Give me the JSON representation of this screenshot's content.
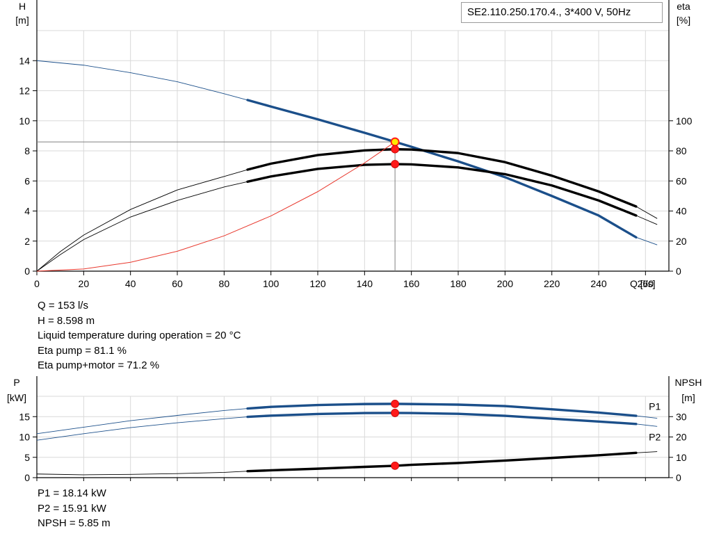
{
  "title": "SE2.110.250.170.4., 3*400 V, 50Hz",
  "colors": {
    "blue": "#1b4f8a",
    "black": "#000000",
    "red_curve": "#e8372c",
    "marker": "#ff1a1a",
    "grid": "#d9d9d9",
    "duty_marker_fill": "#ffe800"
  },
  "chart_data": [
    {
      "type": "line",
      "name": "performance",
      "x_axis": {
        "label": "Q [l/s]",
        "min": 0,
        "max": 270,
        "ticks": [
          0,
          20,
          40,
          60,
          80,
          100,
          120,
          140,
          160,
          180,
          200,
          220,
          240,
          260
        ],
        "tick_labels": [
          "0",
          "20",
          "40",
          "60",
          "80",
          "100",
          "120",
          "140",
          "160",
          "180",
          "200",
          "220",
          "240",
          "260"
        ]
      },
      "y_left": {
        "label_line1": "H",
        "label_line2": "[m]",
        "min": 0,
        "max": 16,
        "ticks": [
          0,
          2,
          4,
          6,
          8,
          10,
          12,
          14
        ],
        "tick_labels": [
          "0",
          "2",
          "4",
          "6",
          "8",
          "10",
          "12",
          "14"
        ]
      },
      "y_right": {
        "label_line1": "eta",
        "label_line2": "[%]",
        "min": 0,
        "max": 160,
        "ticks": [
          0,
          20,
          40,
          60,
          80,
          100
        ],
        "tick_labels": [
          "0",
          "20",
          "40",
          "60",
          "80",
          "100"
        ]
      },
      "grid": true,
      "series": [
        {
          "id": "H",
          "axis": "left",
          "color": "#1b4f8a",
          "x": [
            0,
            20,
            40,
            60,
            80,
            90,
            100,
            120,
            140,
            153,
            160,
            180,
            200,
            220,
            240,
            256,
            265
          ],
          "y": [
            14.0,
            13.7,
            13.2,
            12.6,
            11.8,
            11.38,
            10.95,
            10.1,
            9.2,
            8.6,
            8.27,
            7.3,
            6.25,
            5.0,
            3.7,
            2.25,
            1.75
          ],
          "bold_range": [
            90,
            256
          ]
        },
        {
          "id": "eta-pump",
          "axis": "right",
          "color": "#000000",
          "x": [
            0,
            10,
            20,
            40,
            60,
            80,
            90,
            100,
            120,
            140,
            153,
            160,
            180,
            200,
            220,
            240,
            256,
            265
          ],
          "y": [
            0,
            13,
            24,
            41,
            54,
            63,
            67.5,
            71.5,
            77.2,
            80.3,
            81.1,
            80.9,
            78.5,
            72.5,
            63.5,
            53,
            43,
            35
          ],
          "bold_range": [
            90,
            256
          ]
        },
        {
          "id": "eta-total",
          "axis": "right",
          "color": "#000000",
          "x": [
            0,
            10,
            20,
            40,
            60,
            80,
            90,
            100,
            120,
            140,
            153,
            160,
            180,
            200,
            220,
            240,
            256,
            265
          ],
          "y": [
            0,
            11,
            21,
            36,
            47,
            56,
            59.5,
            63,
            68,
            70.7,
            71.2,
            71,
            69,
            64.5,
            57,
            47,
            37,
            31
          ],
          "bold_range": [
            90,
            256
          ]
        },
        {
          "id": "system-curve",
          "axis": "left",
          "color": "#e8372c",
          "x": [
            0,
            20,
            40,
            60,
            80,
            100,
            120,
            140,
            153
          ],
          "y": [
            0,
            0.147,
            0.588,
            1.322,
            2.35,
            3.673,
            5.289,
            7.199,
            8.598
          ],
          "thin": true
        }
      ],
      "duty_line": {
        "q": 153,
        "h": 8.598
      },
      "duty_markers": [
        {
          "axis": "left",
          "q": 153,
          "value": 8.598,
          "style": "yellow"
        },
        {
          "axis": "right",
          "q": 153,
          "value": 81.1,
          "style": "red"
        },
        {
          "axis": "right",
          "q": 153,
          "value": 71.2,
          "style": "red"
        }
      ]
    },
    {
      "type": "line",
      "name": "power-npsh",
      "x_axis": {
        "min": 0,
        "max": 270
      },
      "y_left": {
        "label_line1": "P",
        "label_line2": "[kW]",
        "min": 0,
        "max": 20,
        "ticks": [
          0,
          5,
          10,
          15
        ],
        "tick_labels": [
          "0",
          "5",
          "10",
          "15"
        ]
      },
      "y_right": {
        "label_line1": "NPSH",
        "label_line2": "[m]",
        "min": 0,
        "max": 40,
        "ticks": [
          0,
          10,
          20,
          30
        ],
        "tick_labels": [
          "0",
          "10",
          "20",
          "30"
        ]
      },
      "grid": true,
      "series": [
        {
          "id": "P1",
          "name": "P1",
          "axis": "left",
          "color": "#1b4f8a",
          "x": [
            0,
            20,
            40,
            60,
            80,
            90,
            100,
            120,
            140,
            153,
            160,
            180,
            200,
            220,
            240,
            256,
            265
          ],
          "y": [
            10.8,
            12.4,
            14.0,
            15.3,
            16.5,
            17.0,
            17.4,
            17.85,
            18.1,
            18.14,
            18.1,
            17.95,
            17.6,
            16.8,
            16.0,
            15.2,
            14.6
          ],
          "bold_range": [
            90,
            256
          ]
        },
        {
          "id": "P2",
          "name": "P2",
          "axis": "left",
          "color": "#1b4f8a",
          "x": [
            0,
            20,
            40,
            60,
            80,
            90,
            100,
            120,
            140,
            153,
            160,
            180,
            200,
            220,
            240,
            256,
            265
          ],
          "y": [
            9.2,
            10.8,
            12.3,
            13.5,
            14.5,
            14.95,
            15.25,
            15.65,
            15.88,
            15.91,
            15.88,
            15.7,
            15.2,
            14.5,
            13.8,
            13.2,
            12.6
          ],
          "bold_range": [
            90,
            256
          ]
        },
        {
          "id": "NPSH",
          "axis": "right",
          "color": "#000000",
          "x": [
            0,
            20,
            40,
            60,
            80,
            90,
            100,
            120,
            140,
            153,
            160,
            180,
            200,
            220,
            240,
            256,
            265
          ],
          "y": [
            1.8,
            1.4,
            1.6,
            2.0,
            2.6,
            3.2,
            3.6,
            4.4,
            5.3,
            5.85,
            6.3,
            7.2,
            8.4,
            9.7,
            11.0,
            12.2,
            12.8
          ],
          "bold_range": [
            90,
            256
          ]
        }
      ],
      "duty_markers": [
        {
          "axis": "left",
          "q": 153,
          "value": 18.14,
          "style": "red"
        },
        {
          "axis": "left",
          "q": 153,
          "value": 15.91,
          "style": "red"
        },
        {
          "axis": "right",
          "q": 153,
          "value": 5.85,
          "style": "red"
        }
      ]
    }
  ],
  "info_top": [
    "Q = 153 l/s",
    "H = 8.598 m",
    "Liquid temperature during operation = 20 °C",
    "Eta pump = 81.1 %",
    "Eta pump+motor = 71.2 %"
  ],
  "info_bottom": [
    "P1 = 18.14 kW",
    "P2 = 15.91 kW",
    "NPSH = 5.85 m"
  ]
}
